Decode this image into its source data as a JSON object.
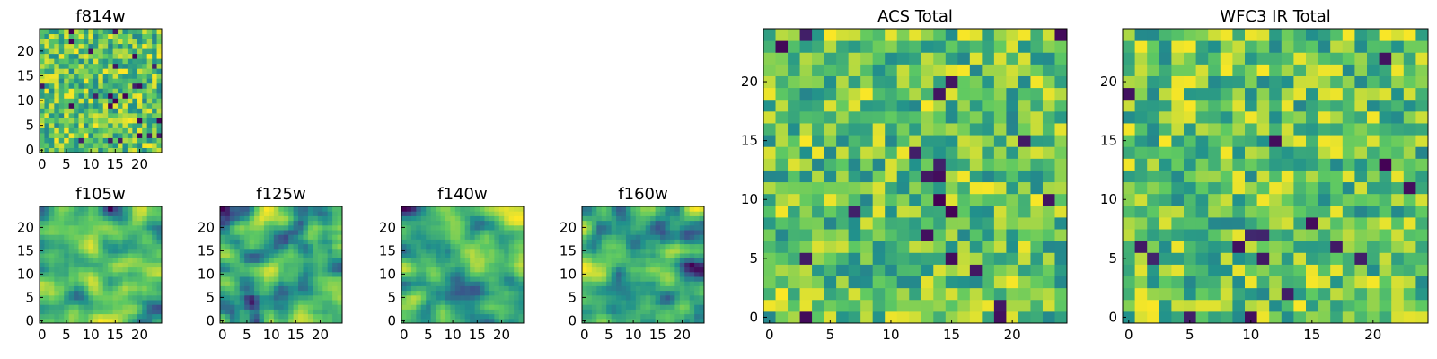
{
  "chart_data": {
    "type": "heatmap",
    "colormap": "viridis",
    "colors": [
      "#440154",
      "#3b528b",
      "#21918c",
      "#5ec962",
      "#fde725"
    ],
    "grid_size": [
      25,
      25
    ],
    "panels": [
      {
        "id": "f814w",
        "title": "f814w",
        "xticks": [
          0,
          5,
          10,
          15,
          20
        ],
        "yticks": [
          0,
          5,
          10,
          15,
          20
        ],
        "xlim": [
          0,
          24
        ],
        "ylim": [
          0,
          24
        ],
        "texture": "noisy"
      },
      {
        "id": "f105w",
        "title": "f105w",
        "xticks": [
          0,
          5,
          10,
          15,
          20
        ],
        "yticks": [
          0,
          5,
          10,
          15,
          20
        ],
        "xlim": [
          0,
          24
        ],
        "ylim": [
          0,
          24
        ],
        "texture": "smooth"
      },
      {
        "id": "f125w",
        "title": "f125w",
        "xticks": [
          0,
          5,
          10,
          15,
          20
        ],
        "yticks": [
          0,
          5,
          10,
          15,
          20
        ],
        "xlim": [
          0,
          24
        ],
        "ylim": [
          0,
          24
        ],
        "texture": "smooth"
      },
      {
        "id": "f140w",
        "title": "f140w",
        "xticks": [
          0,
          5,
          10,
          15,
          20
        ],
        "yticks": [
          0,
          5,
          10,
          15,
          20
        ],
        "xlim": [
          0,
          24
        ],
        "ylim": [
          0,
          24
        ],
        "texture": "smooth"
      },
      {
        "id": "f160w",
        "title": "f160w",
        "xticks": [
          0,
          5,
          10,
          15,
          20
        ],
        "yticks": [
          0,
          5,
          10,
          15,
          20
        ],
        "xlim": [
          0,
          24
        ],
        "ylim": [
          0,
          24
        ],
        "texture": "smooth"
      },
      {
        "id": "acs",
        "title": "ACS Total",
        "xticks": [
          0,
          5,
          10,
          15,
          20
        ],
        "yticks": [
          0,
          5,
          10,
          15,
          20
        ],
        "xlim": [
          0,
          24
        ],
        "ylim": [
          0,
          24
        ],
        "texture": "noisy"
      },
      {
        "id": "wfc3ir",
        "title": "WFC3 IR Total",
        "xticks": [
          0,
          5,
          10,
          15,
          20
        ],
        "yticks": [
          0,
          5,
          10,
          15,
          20
        ],
        "xlim": [
          0,
          24
        ],
        "ylim": [
          0,
          24
        ],
        "texture": "noisy"
      }
    ]
  }
}
